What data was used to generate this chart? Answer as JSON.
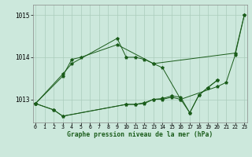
{
  "title": "Graphe pression niveau de la mer (hPa)",
  "bg_color": "#cce8dc",
  "grid_color": "#aaccbb",
  "line_color": "#1a5c1a",
  "x_ticks": [
    0,
    1,
    2,
    3,
    4,
    5,
    6,
    7,
    8,
    9,
    10,
    11,
    12,
    13,
    14,
    15,
    16,
    17,
    18,
    19,
    20,
    21,
    22,
    23
  ],
  "y_ticks": [
    1013,
    1014,
    1015
  ],
  "ylim": [
    1012.45,
    1015.25
  ],
  "xlim": [
    -0.3,
    23.3
  ],
  "series": [
    {
      "x": [
        0,
        3,
        4,
        9,
        10,
        11,
        12,
        13,
        22,
        23
      ],
      "y": [
        1012.9,
        1013.6,
        1013.85,
        1014.45,
        1014.0,
        1014.0,
        1013.95,
        1013.85,
        1014.1,
        1015.0
      ]
    },
    {
      "x": [
        0,
        3,
        4,
        5,
        9,
        13,
        14,
        16,
        20,
        21,
        22,
        23
      ],
      "y": [
        1012.9,
        1013.55,
        1013.95,
        1014.0,
        1014.3,
        1013.85,
        1013.75,
        1013.0,
        1013.3,
        1013.4,
        1014.05,
        1015.0
      ]
    },
    {
      "x": [
        0,
        2,
        3,
        10,
        11,
        12,
        13,
        14,
        15,
        16,
        17,
        18,
        19,
        20
      ],
      "y": [
        1012.9,
        1012.75,
        1012.6,
        1012.88,
        1012.88,
        1012.9,
        1013.0,
        1013.0,
        1013.05,
        1013.0,
        1012.68,
        1013.1,
        1013.28,
        1013.45
      ]
    },
    {
      "x": [
        0,
        2,
        3,
        10,
        11,
        12,
        13,
        14,
        15,
        16,
        17,
        18,
        19,
        20
      ],
      "y": [
        1012.9,
        1012.75,
        1012.6,
        1012.88,
        1012.88,
        1012.92,
        1013.0,
        1013.02,
        1013.08,
        1013.05,
        1012.68,
        1013.1,
        1013.28,
        1013.45
      ]
    }
  ]
}
